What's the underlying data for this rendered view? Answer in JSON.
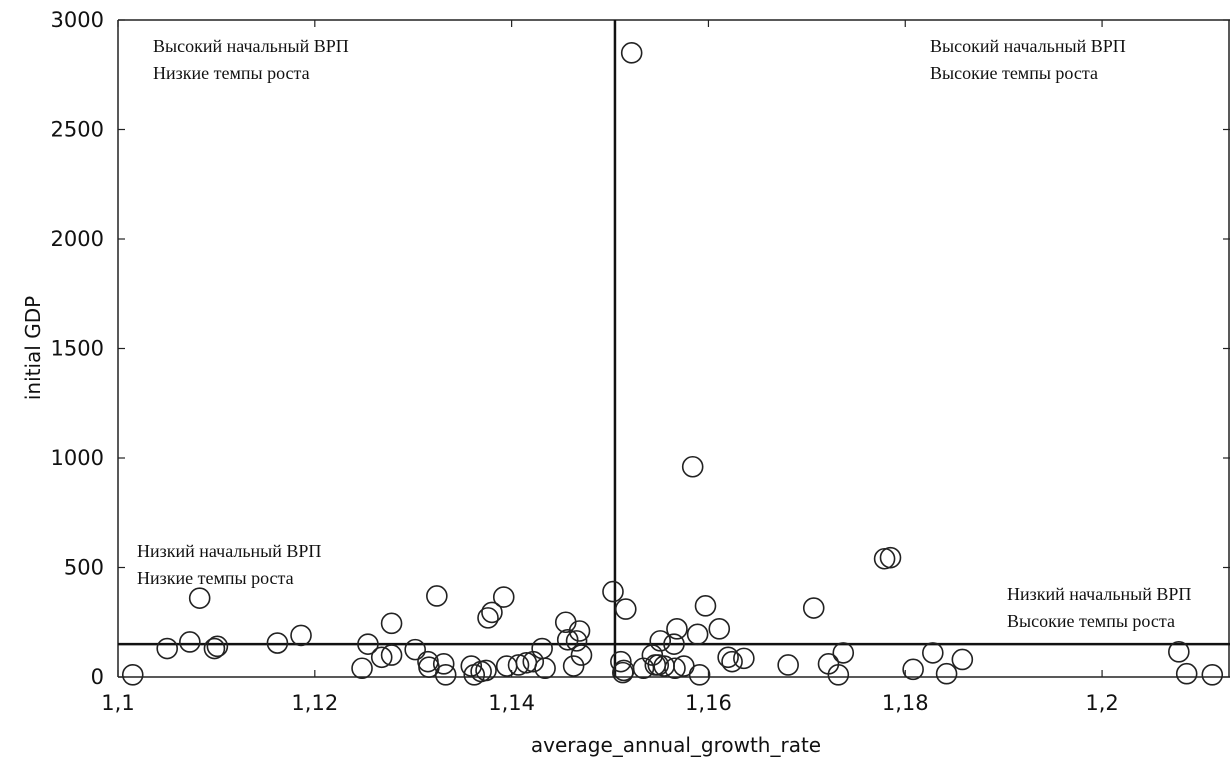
{
  "chart_data": {
    "type": "scatter",
    "title": "",
    "xlabel": "average_annual_growth_rate",
    "ylabel": "initial  GDP",
    "xlim": [
      1.1,
      1.213
    ],
    "ylim": [
      0,
      3000
    ],
    "x_ticks": [
      1.1,
      1.12,
      1.14,
      1.16,
      1.18,
      1.2
    ],
    "x_tick_labels": [
      "1,1",
      "1,12",
      "1,14",
      "1,16",
      "1,18",
      "1,2"
    ],
    "y_ticks": [
      0,
      500,
      1000,
      1500,
      2000,
      2500,
      3000
    ],
    "y_tick_labels": [
      "0",
      "500",
      "1000",
      "1500",
      "2000",
      "2500",
      "3000"
    ],
    "grid": false,
    "reference_lines": {
      "x": 1.1505,
      "y": 150
    },
    "quadrant_labels": {
      "top_left": {
        "line1": "Высокий начальный ВРП",
        "line2": "Низкие темпы роста"
      },
      "top_right": {
        "line1": "Высокий начальный ВРП",
        "line2": "Высокие темпы роста"
      },
      "bottom_left": {
        "line1": "Низкий начальный ВРП",
        "line2": "Низкие темпы роста"
      },
      "bottom_right": {
        "line1": "Низкий начальный ВРП",
        "line2": "Высокие темпы роста"
      }
    },
    "series": [
      {
        "marker": "open-circle",
        "points": [
          [
            1.1015,
            10
          ],
          [
            1.105,
            130
          ],
          [
            1.1073,
            160
          ],
          [
            1.1083,
            360
          ],
          [
            1.1098,
            130
          ],
          [
            1.1101,
            140
          ],
          [
            1.1162,
            155
          ],
          [
            1.1186,
            190
          ],
          [
            1.1248,
            40
          ],
          [
            1.1254,
            150
          ],
          [
            1.1268,
            90
          ],
          [
            1.1278,
            100
          ],
          [
            1.1278,
            245
          ],
          [
            1.1302,
            125
          ],
          [
            1.1315,
            70
          ],
          [
            1.1316,
            45
          ],
          [
            1.1324,
            370
          ],
          [
            1.1331,
            60
          ],
          [
            1.1333,
            10
          ],
          [
            1.1359,
            50
          ],
          [
            1.1362,
            10
          ],
          [
            1.1369,
            25
          ],
          [
            1.1374,
            30
          ],
          [
            1.1376,
            270
          ],
          [
            1.138,
            295
          ],
          [
            1.1392,
            365
          ],
          [
            1.1395,
            50
          ],
          [
            1.1407,
            55
          ],
          [
            1.1415,
            65
          ],
          [
            1.1422,
            70
          ],
          [
            1.1431,
            130
          ],
          [
            1.1434,
            40
          ],
          [
            1.1455,
            250
          ],
          [
            1.1457,
            170
          ],
          [
            1.1463,
            50
          ],
          [
            1.1466,
            165
          ],
          [
            1.1469,
            210
          ],
          [
            1.1471,
            100
          ],
          [
            1.1503,
            390
          ],
          [
            1.1511,
            70
          ],
          [
            1.1513,
            20
          ],
          [
            1.1514,
            30
          ],
          [
            1.1516,
            310
          ],
          [
            1.1522,
            2850
          ],
          [
            1.1534,
            40
          ],
          [
            1.1543,
            100
          ],
          [
            1.1546,
            55
          ],
          [
            1.1549,
            55
          ],
          [
            1.1551,
            165
          ],
          [
            1.1555,
            50
          ],
          [
            1.1565,
            150
          ],
          [
            1.1566,
            40
          ],
          [
            1.1568,
            220
          ],
          [
            1.1575,
            50
          ],
          [
            1.1584,
            960
          ],
          [
            1.1589,
            195
          ],
          [
            1.1591,
            10
          ],
          [
            1.1597,
            325
          ],
          [
            1.1611,
            220
          ],
          [
            1.162,
            90
          ],
          [
            1.1624,
            70
          ],
          [
            1.1636,
            85
          ],
          [
            1.1681,
            55
          ],
          [
            1.1707,
            315
          ],
          [
            1.1722,
            60
          ],
          [
            1.1732,
            10
          ],
          [
            1.1737,
            110
          ],
          [
            1.1779,
            540
          ],
          [
            1.1785,
            545
          ],
          [
            1.1808,
            35
          ],
          [
            1.1828,
            110
          ],
          [
            1.1842,
            15
          ],
          [
            1.1858,
            80
          ],
          [
            1.2078,
            115
          ],
          [
            1.2086,
            15
          ],
          [
            1.2112,
            10
          ]
        ]
      }
    ]
  }
}
